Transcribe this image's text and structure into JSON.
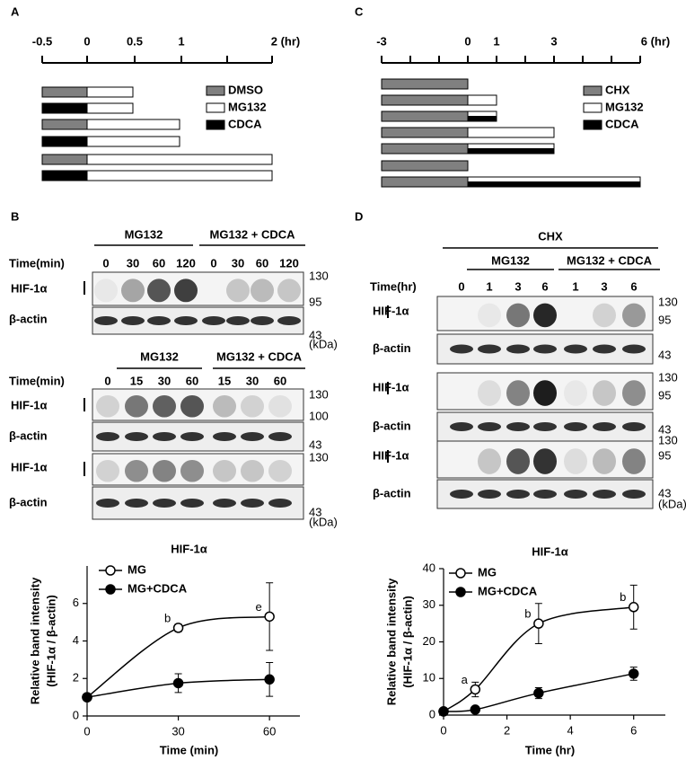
{
  "panel_a": {
    "label": "A",
    "axis_labels": [
      "-0.5",
      "0",
      "0.5",
      "1",
      "2 (hr)"
    ],
    "legend": [
      "DMSO",
      "MG132",
      "CDCA"
    ]
  },
  "panel_b": {
    "label": "B",
    "blot1": {
      "groups": [
        "MG132",
        "MG132 + CDCA"
      ],
      "time_label": "Time(min)",
      "lanes": [
        "0",
        "30",
        "60",
        "120",
        "0",
        "30",
        "60",
        "120"
      ],
      "rows": [
        "HIF-1α",
        "β-actin"
      ],
      "markers": [
        "130",
        "95",
        "43",
        "(kDa)"
      ]
    },
    "blot2": {
      "groups": [
        "MG132",
        "MG132 + CDCA"
      ],
      "time_label": "Time(min)",
      "lanes": [
        "0",
        "15",
        "30",
        "60",
        "15",
        "30",
        "60"
      ],
      "rows": [
        "HIF-1α",
        "β-actin",
        "HIF-1α",
        "β-actin"
      ],
      "markers": [
        "130",
        "100",
        "43",
        "130",
        "43",
        "(kDa)"
      ]
    }
  },
  "panel_c": {
    "label": "C",
    "axis_labels": [
      "-3",
      "0",
      "1",
      "3",
      "6 (hr)"
    ],
    "legend": [
      "CHX",
      "MG132",
      "CDCA"
    ]
  },
  "panel_d": {
    "label": "D",
    "treatment": "CHX",
    "groups": [
      "MG132",
      "MG132 + CDCA"
    ],
    "time_label": "Time(hr)",
    "lanes": [
      "0",
      "1",
      "3",
      "6",
      "1",
      "3",
      "6"
    ],
    "rows": [
      "HIF-1α",
      "β-actin",
      "HIF-1α",
      "β-actin",
      "HIF-1α",
      "β-actin"
    ],
    "markers": [
      "130",
      "95",
      "43",
      "130",
      "95",
      "43",
      "130",
      "95",
      "43",
      "(kDa)"
    ]
  },
  "chart_data": [
    {
      "type": "line",
      "title": "HIF-1α",
      "xlabel": "Time (min)",
      "ylabel": [
        "Relative band intensity",
        "(HIF-1α / β-actin)"
      ],
      "x": [
        0,
        30,
        60
      ],
      "xlim": [
        0,
        70
      ],
      "xticks": [
        0,
        30,
        60
      ],
      "ylim": [
        0,
        8
      ],
      "yticks": [
        0,
        2,
        4,
        6
      ],
      "series": [
        {
          "name": "MG",
          "color": "#ffffff",
          "values": [
            1,
            4.7,
            5.3
          ],
          "errors": [
            0,
            0.2,
            1.8
          ],
          "point_labels": [
            null,
            "b",
            "e"
          ]
        },
        {
          "name": "MG+CDCA",
          "color": "#000000",
          "values": [
            1,
            1.75,
            1.95
          ],
          "errors": [
            0,
            0.5,
            0.9
          ]
        }
      ]
    },
    {
      "type": "line",
      "title": "HIF-1α",
      "xlabel": "Time (hr)",
      "ylabel": [
        "Relative band intensity",
        "(HIF-1α / β-actin)"
      ],
      "x": [
        0,
        1,
        3,
        6
      ],
      "xlim": [
        0,
        7
      ],
      "xticks": [
        0,
        2,
        4,
        6
      ],
      "ylim": [
        0,
        40
      ],
      "yticks": [
        0,
        10,
        20,
        30,
        40
      ],
      "series": [
        {
          "name": "MG",
          "color": "#ffffff",
          "values": [
            1,
            7,
            25,
            29.5
          ],
          "errors": [
            0,
            2,
            5.5,
            6
          ],
          "point_labels": [
            null,
            "a",
            "b",
            "b"
          ]
        },
        {
          "name": "MG+CDCA",
          "color": "#000000",
          "values": [
            1,
            1.5,
            6,
            11.3
          ],
          "errors": [
            0,
            0.3,
            1.5,
            1.8
          ]
        }
      ]
    }
  ]
}
